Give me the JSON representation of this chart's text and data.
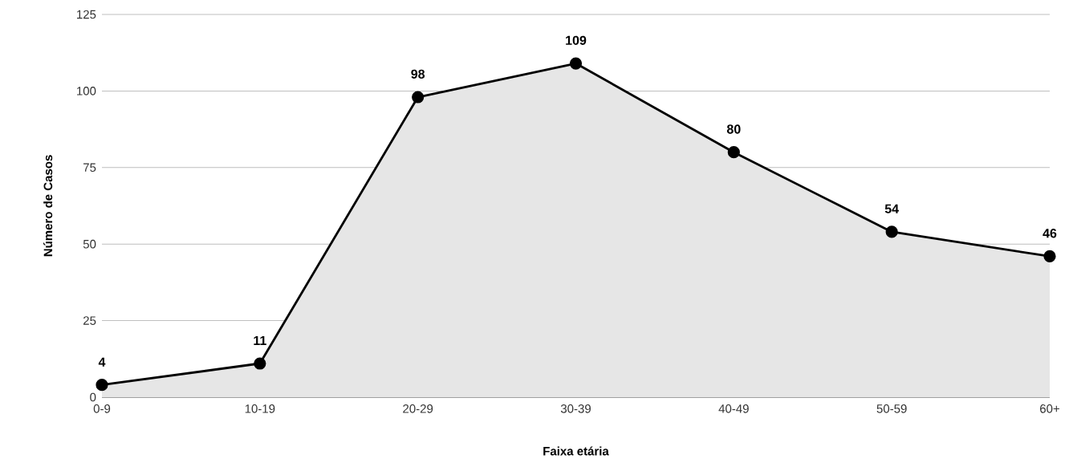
{
  "chart_data": {
    "type": "area",
    "xlabel": "Faixa etária",
    "ylabel": "Número de Casos",
    "categories": [
      "0-9",
      "10-19",
      "20-29",
      "30-39",
      "40-49",
      "50-59",
      "60+"
    ],
    "values": [
      4,
      11,
      98,
      109,
      80,
      54,
      46
    ],
    "color": "#e6e6e6",
    "marker": "circle",
    "data_labels": true,
    "ylim": [
      0,
      125
    ],
    "yticks": [
      0,
      25,
      50,
      75,
      100,
      125
    ],
    "grid": "y"
  }
}
